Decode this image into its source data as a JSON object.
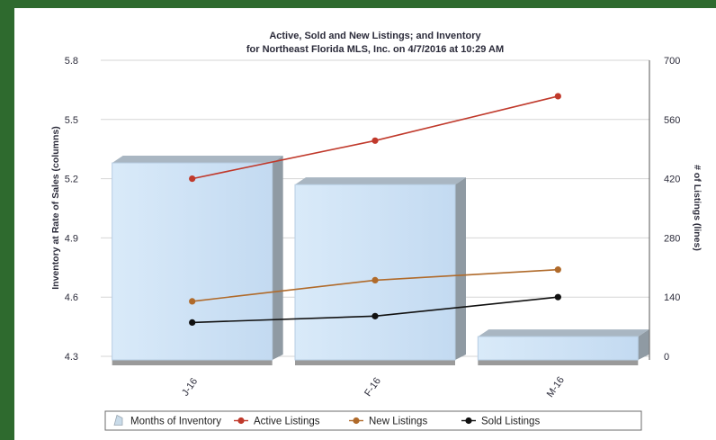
{
  "chart_data": {
    "type": "bar",
    "title": "Active, Sold and New Listings; and Inventory",
    "subtitle": "for Northeast Florida MLS, Inc. on 4/7/2016 at 10:29 AM",
    "categories": [
      "J-16",
      "F-16",
      "M-16"
    ],
    "ylabel_left": "Inventory at Rate of Sales (columns)",
    "ylabel_right": "# of Listings (lines)",
    "ylim_left": [
      4.3,
      5.8
    ],
    "ylim_right": [
      0,
      700
    ],
    "yticks_left": [
      "5.8",
      "5.5",
      "5.2",
      "4.9",
      "4.6",
      "4.3"
    ],
    "yticks_right": [
      "700",
      "560",
      "420",
      "280",
      "140",
      "0"
    ],
    "grid": true,
    "legend_position": "bottom",
    "series": [
      {
        "name": "Months of Inventory",
        "kind": "bar",
        "axis": "left",
        "color": "#cfe3f6",
        "values": [
          5.28,
          5.17,
          4.4
        ]
      },
      {
        "name": "Active Listings",
        "kind": "line",
        "axis": "right",
        "color": "#c0392b",
        "values": [
          420,
          510,
          615
        ]
      },
      {
        "name": "New Listings",
        "kind": "line",
        "axis": "right",
        "color": "#b06a2a",
        "values": [
          130,
          180,
          205
        ]
      },
      {
        "name": "Sold Listings",
        "kind": "line",
        "axis": "right",
        "color": "#111111",
        "values": [
          80,
          95,
          140
        ]
      }
    ]
  }
}
